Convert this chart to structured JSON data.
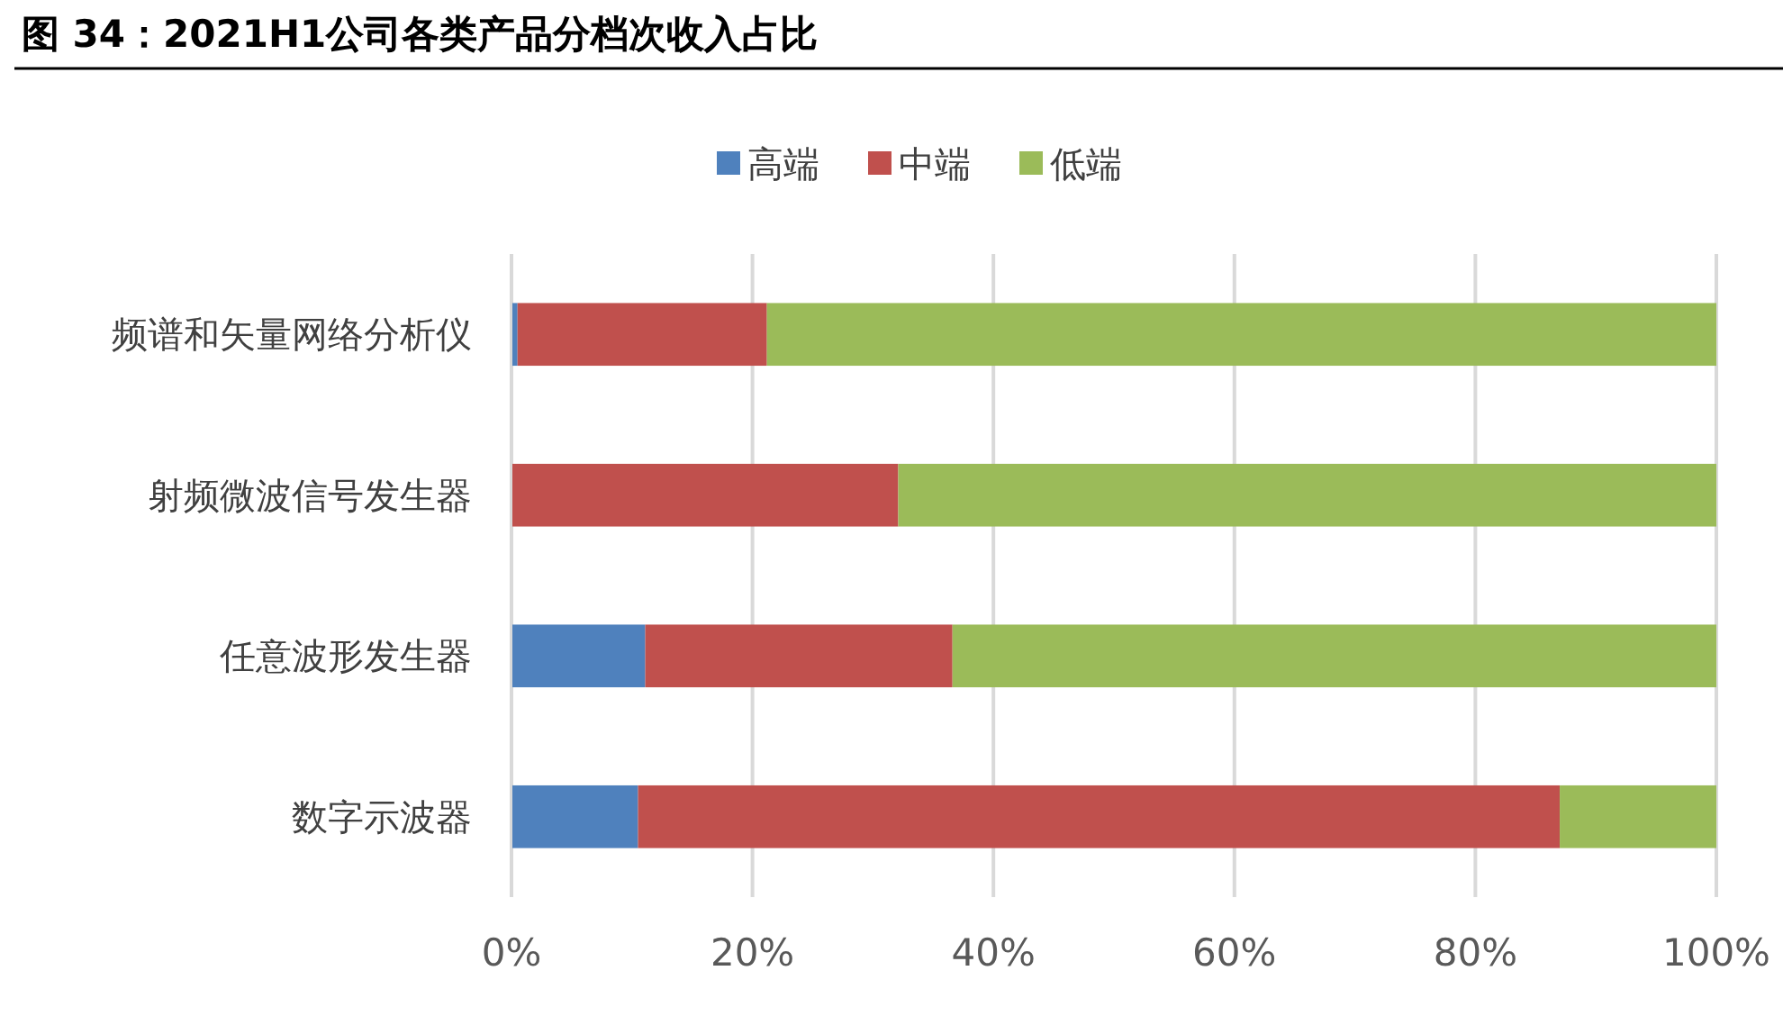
{
  "chart_data": {
    "type": "bar",
    "orientation": "horizontal",
    "stacked": true,
    "title": "图 34：2021H1公司各类产品分档次收入占比",
    "categories": [
      "频谱和矢量网络分析仪",
      "射频微波信号发生器",
      "任意波形发生器",
      "数字示波器"
    ],
    "series": [
      {
        "name": "高端",
        "color": "#4f81bd",
        "values": [
          0.5,
          0,
          11.1,
          10.5
        ]
      },
      {
        "name": "中端",
        "color": "#c0504d",
        "values": [
          20.7,
          32.1,
          25.5,
          76.5
        ]
      },
      {
        "name": "低端",
        "color": "#9bbb59",
        "values": [
          78.8,
          67.9,
          63.4,
          13.0
        ]
      }
    ],
    "xlim": [
      0,
      100
    ],
    "xticks": [
      {
        "value": 0,
        "label": "0%"
      },
      {
        "value": 20,
        "label": "20%"
      },
      {
        "value": 40,
        "label": "40%"
      },
      {
        "value": 60,
        "label": "60%"
      },
      {
        "value": 80,
        "label": "80%"
      },
      {
        "value": 100,
        "label": "100%"
      }
    ],
    "grid": "x",
    "legend": "top"
  }
}
